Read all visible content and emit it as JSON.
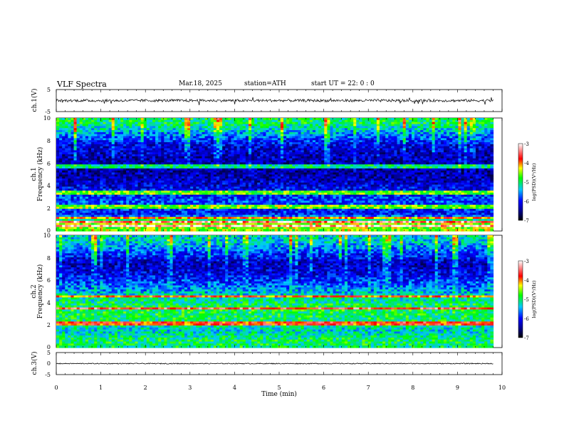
{
  "header": {
    "title": "VLF  Spectra",
    "date": "Mar.18, 2025",
    "station": "station=ATH",
    "start": "start  UT  =    22: 0   : 0"
  },
  "chart_data": [
    {
      "type": "line",
      "panel": "ch1-waveform",
      "ylabel": "ch.1(V)",
      "ylim": [
        -5,
        5
      ],
      "y_ticks": [
        "5",
        "-5"
      ],
      "xlim": [
        0,
        10
      ],
      "description_values": {
        "baseline_V": 0,
        "noise_amplitude_V": 0.6,
        "spikes": "occasional short downward/upward spikes up to about ±2 V"
      }
    },
    {
      "type": "heatmap",
      "panel": "ch1-spectrogram",
      "ylabel_line1": "ch.1",
      "ylabel_line2": "Frequency (kHz)",
      "ylim": [
        0,
        10
      ],
      "y_ticks": [
        "0",
        "2",
        "4",
        "6",
        "8",
        "10"
      ],
      "xlim": [
        0,
        9.8
      ],
      "colorbar": {
        "label": "log(PSD)(V²/Hz)",
        "range": [
          -7,
          -3
        ],
        "ticks": [
          "-3",
          "-4",
          "-5",
          "-6",
          "-7"
        ]
      },
      "intensity_profile": [
        {
          "freq_kHz": 9.5,
          "logPSD": -5.0
        },
        {
          "freq_kHz": 8.5,
          "logPSD": -5.6
        },
        {
          "freq_kHz": 7.5,
          "logPSD": -6.2
        },
        {
          "freq_kHz": 6.5,
          "logPSD": -6.3
        },
        {
          "freq_kHz": 5.5,
          "logPSD": -6.4
        },
        {
          "freq_kHz": 4.5,
          "logPSD": -6.3
        },
        {
          "freq_kHz": 3.5,
          "logPSD": -6.0
        },
        {
          "freq_kHz": 2.5,
          "logPSD": -5.8
        },
        {
          "freq_kHz": 1.5,
          "logPSD": -6.0
        },
        {
          "freq_kHz": 0.7,
          "logPSD": -4.5
        }
      ],
      "bright_lines_kHz": [
        0.5,
        0.8,
        1.2,
        2.1,
        2.3,
        3.4,
        5.7
      ]
    },
    {
      "type": "heatmap",
      "panel": "ch2-spectrogram",
      "ylabel_line1": "ch.2",
      "ylabel_line2": "Frequency (kHz)",
      "ylim": [
        0,
        10
      ],
      "y_ticks": [
        "0",
        "2",
        "4",
        "6",
        "8",
        "10"
      ],
      "xlim": [
        0,
        9.8
      ],
      "colorbar": {
        "label": "log(PSD)(V²/Hz)",
        "range": [
          -7,
          -3
        ],
        "ticks": [
          "-3",
          "-4",
          "-5",
          "-6",
          "-7"
        ]
      },
      "intensity_profile": [
        {
          "freq_kHz": 9.5,
          "logPSD": -5.3
        },
        {
          "freq_kHz": 8.5,
          "logPSD": -5.8
        },
        {
          "freq_kHz": 7.5,
          "logPSD": -6.3
        },
        {
          "freq_kHz": 6.5,
          "logPSD": -6.1
        },
        {
          "freq_kHz": 5.5,
          "logPSD": -5.7
        },
        {
          "freq_kHz": 4.5,
          "logPSD": -5.2
        },
        {
          "freq_kHz": 3.5,
          "logPSD": -4.9
        },
        {
          "freq_kHz": 2.5,
          "logPSD": -5.0
        },
        {
          "freq_kHz": 1.5,
          "logPSD": -5.3
        },
        {
          "freq_kHz": 0.7,
          "logPSD": -5.0
        }
      ],
      "bright_lines_kHz": [
        2.0,
        2.2,
        3.5,
        4.6
      ]
    },
    {
      "type": "line",
      "panel": "ch3-waveform",
      "ylabel": "ch.3(V)",
      "ylim": [
        -5,
        5
      ],
      "y_ticks": [
        "5",
        "0",
        "-5"
      ],
      "xlim": [
        0,
        10
      ],
      "xlabel": "Time  (min)",
      "x_ticks": [
        "0",
        "1",
        "2",
        "3",
        "4",
        "5",
        "6",
        "7",
        "8",
        "9",
        "10"
      ],
      "description_values": {
        "baseline_V": 0,
        "noise_amplitude_V": 0.2
      }
    }
  ]
}
